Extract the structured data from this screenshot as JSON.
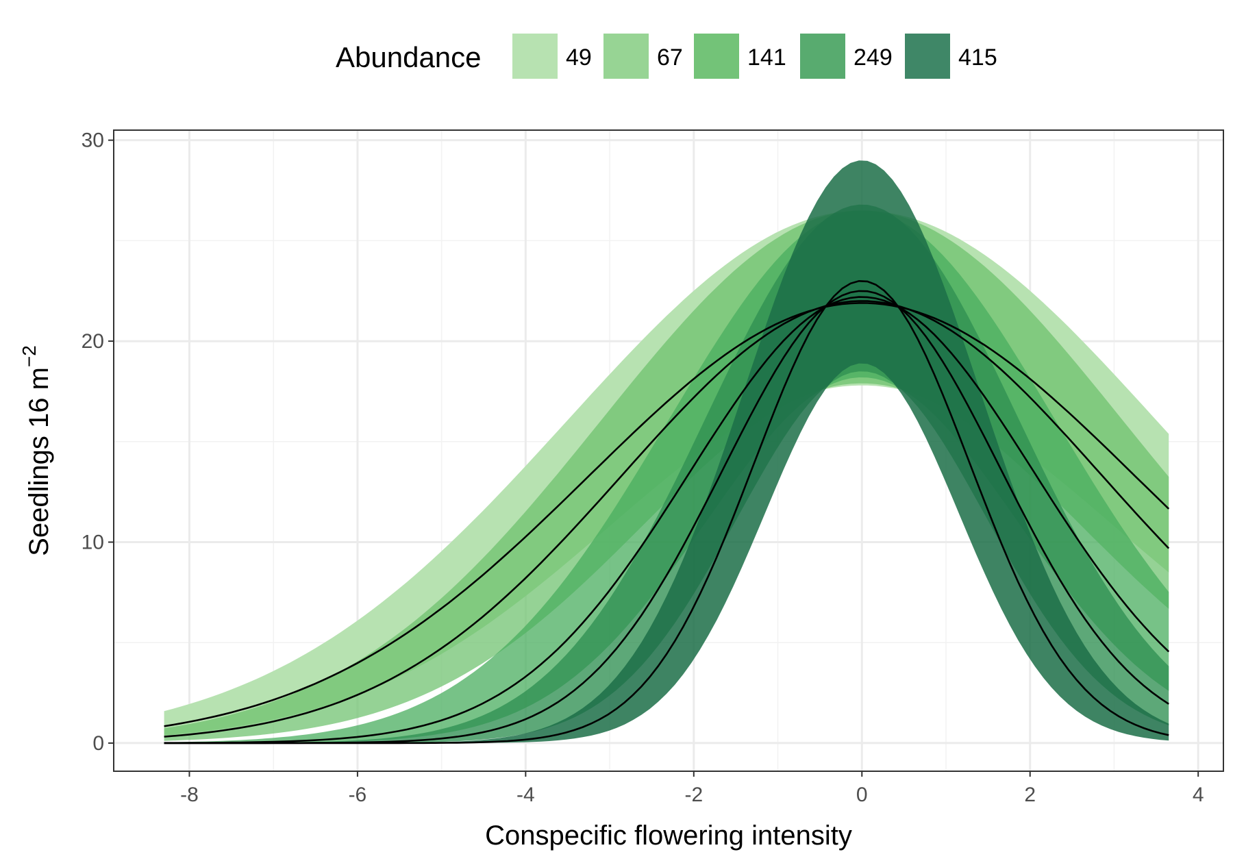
{
  "chart_data": {
    "type": "area",
    "title": "",
    "xlabel": "Conspecific flowering intensity",
    "ylabel_main": "Seedlings 16 m",
    "ylabel_superscript": "−2",
    "xlim": [
      -8.9,
      4.3
    ],
    "ylim": [
      -1.4,
      30.5
    ],
    "x_ticks": [
      -8,
      -6,
      -4,
      -2,
      0,
      2,
      4
    ],
    "x_tick_labels": [
      "-8",
      "-6",
      "-4",
      "-2",
      "0",
      "2",
      "4"
    ],
    "y_ticks": [
      0,
      10,
      20,
      30
    ],
    "y_tick_labels": [
      "0",
      "10",
      "20",
      "30"
    ],
    "grid": true,
    "legend": {
      "title": "Abundance",
      "position": "top",
      "entries": [
        "49",
        "67",
        "141",
        "249",
        "415"
      ],
      "colors": [
        "#b7e2b1",
        "#97d494",
        "#73c378",
        "#58ab6f",
        "#3f8767"
      ]
    },
    "x_range": [
      -8.3,
      3.65
    ],
    "series": [
      {
        "name": "49",
        "peak": 21.9,
        "sigma": 3.25,
        "lower_peak": 17.8,
        "upper_peak": 26.5,
        "lower_sigma": 3.0,
        "upper_sigma": 3.5,
        "color": "#b7e2b1",
        "opacity": 1.0
      },
      {
        "name": "67",
        "peak": 22.0,
        "sigma": 2.85,
        "lower_peak": 17.9,
        "upper_peak": 26.5,
        "lower_sigma": 2.6,
        "upper_sigma": 3.1,
        "color": "#6cc06c",
        "opacity": 0.72
      },
      {
        "name": "141",
        "peak": 22.2,
        "sigma": 2.05,
        "lower_peak": 18.2,
        "upper_peak": 26.5,
        "lower_sigma": 1.85,
        "upper_sigma": 2.3,
        "color": "#4aad5f",
        "opacity": 0.75
      },
      {
        "name": "249",
        "peak": 22.5,
        "sigma": 1.65,
        "lower_peak": 18.5,
        "upper_peak": 26.8,
        "lower_sigma": 1.48,
        "upper_sigma": 1.85,
        "color": "#2f8f52",
        "opacity": 0.78
      },
      {
        "name": "415",
        "peak": 23.0,
        "sigma": 1.28,
        "lower_peak": 18.9,
        "upper_peak": 29.0,
        "lower_sigma": 1.15,
        "upper_sigma": 1.4,
        "color": "#1c6e48",
        "opacity": 0.85
      }
    ]
  }
}
